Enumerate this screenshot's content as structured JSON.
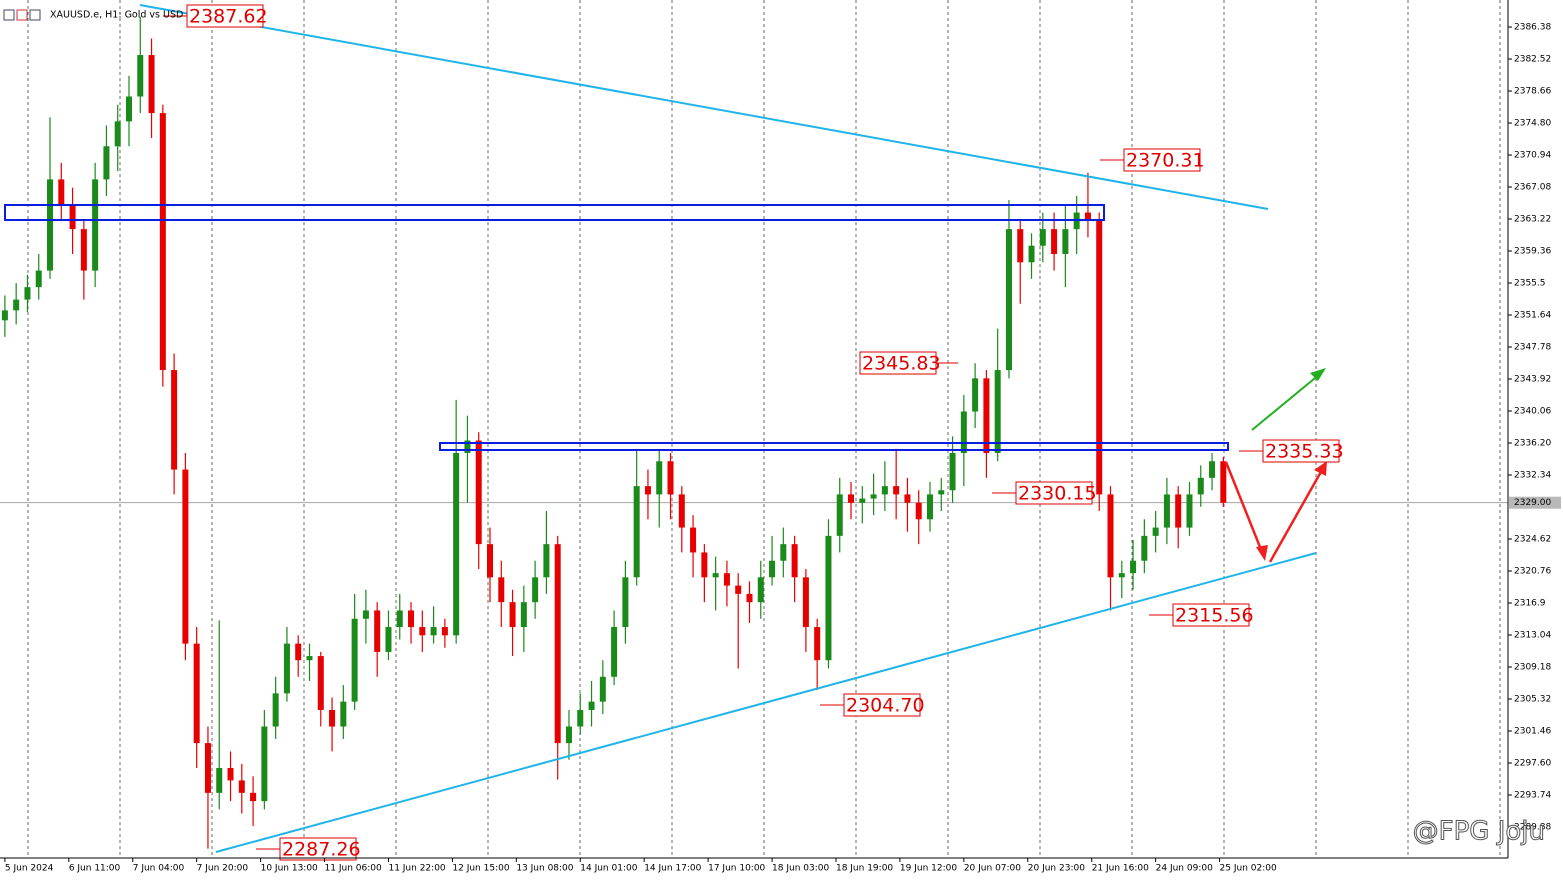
{
  "chart_data": {
    "type": "candlestick",
    "title": "XAUUSD.e, H1: Gold vs USD",
    "up_color": "#1a8a1a",
    "down_color": "#e60000",
    "watermark": "@FPG Joju",
    "xlim": [
      -1.3,
      399.7
    ],
    "ylim": [
      2286.14,
      2389.64
    ],
    "yticks": [
      2386.38,
      2382.52,
      2378.66,
      {
        "value": 2374.8,
        "label": "2374.80"
      },
      2370.94,
      2367.08,
      2363.22,
      2359.36,
      2355.5,
      2351.64,
      2347.78,
      2343.92,
      2340.06,
      {
        "value": 2336.2,
        "label": "2336.20"
      },
      2332.34,
      2324.62,
      2320.76,
      2316.9,
      2313.04,
      2309.18,
      2305.32,
      2301.46,
      {
        "value": 2297.6,
        "label": "2297.60"
      },
      2293.74,
      2289.88
    ],
    "xticks": [
      {
        "value": 0,
        "label": "5 Jun 2024"
      },
      {
        "value": 17,
        "label": "6 Jun 11:00"
      },
      {
        "value": 34,
        "label": "7 Jun 04:00"
      },
      {
        "value": 51,
        "label": "7 Jun 20:00"
      },
      {
        "value": 68,
        "label": "10 Jun 13:00"
      },
      {
        "value": 85,
        "label": "11 Jun 06:00"
      },
      {
        "value": 102,
        "label": "11 Jun 22:00"
      },
      {
        "value": 119,
        "label": "12 Jun 15:00"
      },
      {
        "value": 136,
        "label": "13 Jun 08:00"
      },
      {
        "value": 153,
        "label": "14 Jun 01:00"
      },
      {
        "value": 170,
        "label": "14 Jun 17:00"
      },
      {
        "value": 187,
        "label": "17 Jun 10:00"
      },
      {
        "value": 204,
        "label": "18 Jun 03:00"
      },
      {
        "value": 221,
        "label": "18 Jun 19:00"
      },
      {
        "value": 238,
        "label": "19 Jun 12:00"
      },
      {
        "value": 255,
        "label": "20 Jun 07:00"
      },
      {
        "value": 272,
        "label": "20 Jun 23:00"
      },
      {
        "value": 289,
        "label": "21 Jun 16:00"
      },
      {
        "value": 306,
        "label": "24 Jun 09:00"
      },
      {
        "value": 323,
        "label": "25 Jun 02:00"
      }
    ],
    "current_price": {
      "value": 2329.0,
      "label": "2329.00"
    },
    "annotations": [
      "2387.62",
      "2370.31",
      "2345.83",
      "2335.33",
      "2330.15",
      "2315.56",
      "2304.70",
      "2287.26"
    ],
    "x": [
      0,
      3,
      6,
      9,
      12,
      15,
      18,
      21,
      24,
      27,
      30,
      33,
      36,
      39,
      42,
      45,
      48,
      51,
      54,
      57,
      60,
      63,
      66,
      69,
      72,
      75,
      78,
      81,
      84,
      87,
      90,
      93,
      96,
      99,
      102,
      105,
      108,
      111,
      114,
      117,
      120,
      123,
      126,
      129,
      132,
      135,
      138,
      141,
      144,
      147,
      150,
      153,
      156,
      159,
      162,
      165,
      168,
      171,
      174,
      177,
      180,
      183,
      186,
      189,
      192,
      195,
      198,
      201,
      204,
      207,
      210,
      213,
      216,
      219,
      222,
      225,
      228,
      231,
      234,
      237,
      240,
      243,
      246,
      249,
      252,
      255,
      258,
      261,
      264,
      267,
      270,
      273,
      276,
      279,
      282,
      285,
      288,
      291,
      294,
      297,
      300,
      303,
      306,
      309,
      312,
      315,
      318,
      321,
      324
    ],
    "ohlc": [
      [
        2351,
        2354,
        2349,
        2352.2
      ],
      [
        2352.2,
        2355.5,
        2350.5,
        2353.5
      ],
      [
        2353.5,
        2356.5,
        2352,
        2355
      ],
      [
        2355,
        2359,
        2353.5,
        2357
      ],
      [
        2357,
        2375.5,
        2356,
        2368
      ],
      [
        2368,
        2370,
        2363,
        2365
      ],
      [
        2365,
        2367,
        2359,
        2362
      ],
      [
        2362,
        2363,
        2353.5,
        2357
      ],
      [
        2357,
        2370,
        2355,
        2368
      ],
      [
        2368,
        2374.5,
        2366,
        2372
      ],
      [
        2372,
        2377,
        2369,
        2375
      ],
      [
        2375,
        2380.5,
        2372,
        2378
      ],
      [
        2378,
        2387.62,
        2376,
        2383
      ],
      [
        2383,
        2385,
        2373,
        2376
      ],
      [
        2376,
        2377,
        2343,
        2345
      ],
      [
        2345,
        2347,
        2330,
        2333
      ],
      [
        2333,
        2335,
        2310,
        2312
      ],
      [
        2312,
        2314,
        2297,
        2300
      ],
      [
        2300,
        2302,
        2287.26,
        2294
      ],
      [
        2294,
        2314.8,
        2292,
        2297
      ],
      [
        2297,
        2299,
        2293,
        2295.5
      ],
      [
        2295.5,
        2297.5,
        2291.5,
        2294
      ],
      [
        2294,
        2296,
        2290,
        2293
      ],
      [
        2293,
        2304,
        2292,
        2302
      ],
      [
        2302,
        2308,
        2300.5,
        2306
      ],
      [
        2306,
        2314,
        2305,
        2312
      ],
      [
        2312,
        2313,
        2308,
        2310
      ],
      [
        2310,
        2312,
        2307.5,
        2310.5
      ],
      [
        2310.5,
        2311,
        2302,
        2304
      ],
      [
        2304,
        2305.5,
        2299,
        2302
      ],
      [
        2302,
        2307,
        2300.5,
        2305
      ],
      [
        2305,
        2318,
        2304,
        2315
      ],
      [
        2315,
        2318.5,
        2312,
        2316
      ],
      [
        2316,
        2317,
        2308,
        2311
      ],
      [
        2311,
        2316,
        2310,
        2314
      ],
      [
        2314,
        2318,
        2312.5,
        2316
      ],
      [
        2316,
        2317,
        2312,
        2314
      ],
      [
        2314,
        2316,
        2311,
        2313
      ],
      [
        2313,
        2316.5,
        2312,
        2314
      ],
      [
        2314,
        2315,
        2311.5,
        2313
      ],
      [
        2313,
        2341.4,
        2312,
        2335
      ],
      [
        2335,
        2339.5,
        2329,
        2336.5
      ],
      [
        2336.5,
        2337.5,
        2321,
        2324
      ],
      [
        2324,
        2326,
        2317,
        2320
      ],
      [
        2320,
        2322,
        2314,
        2317
      ],
      [
        2317,
        2318.5,
        2310.5,
        2314
      ],
      [
        2314,
        2319,
        2311,
        2317
      ],
      [
        2317,
        2322,
        2315,
        2320
      ],
      [
        2320,
        2328,
        2318,
        2324
      ],
      [
        2324,
        2325,
        2295.6,
        2300
      ],
      [
        2300,
        2304,
        2298,
        2302
      ],
      [
        2302,
        2306,
        2301,
        2304
      ],
      [
        2304,
        2307.5,
        2302,
        2305
      ],
      [
        2305,
        2310,
        2303.5,
        2308
      ],
      [
        2308,
        2316,
        2307,
        2314
      ],
      [
        2314,
        2322,
        2312,
        2320
      ],
      [
        2320,
        2335.5,
        2319,
        2331
      ],
      [
        2331,
        2333,
        2327,
        2330
      ],
      [
        2330,
        2335.5,
        2326,
        2334
      ],
      [
        2334,
        2335,
        2327,
        2330
      ],
      [
        2330,
        2331,
        2323,
        2326
      ],
      [
        2326,
        2327.5,
        2320,
        2323
      ],
      [
        2323,
        2324,
        2317,
        2320
      ],
      [
        2320,
        2322.5,
        2316,
        2320.5
      ],
      [
        2320.5,
        2322,
        2316.5,
        2319
      ],
      [
        2319,
        2320.5,
        2309,
        2318
      ],
      [
        2318,
        2319.5,
        2314.5,
        2317
      ],
      [
        2317,
        2322,
        2315,
        2320
      ],
      [
        2320,
        2325,
        2319,
        2322
      ],
      [
        2322,
        2326,
        2320,
        2324
      ],
      [
        2324,
        2325,
        2317,
        2320
      ],
      [
        2320,
        2321,
        2311,
        2314
      ],
      [
        2314,
        2315,
        2306.4,
        2310
      ],
      [
        2310,
        2327,
        2309,
        2325
      ],
      [
        2325,
        2332,
        2323,
        2330
      ],
      [
        2330,
        2331.5,
        2327,
        2329
      ],
      [
        2329,
        2331,
        2326.5,
        2329.5
      ],
      [
        2329.5,
        2332.5,
        2327.5,
        2330
      ],
      [
        2330,
        2334,
        2328,
        2331
      ],
      [
        2331,
        2335.5,
        2327,
        2330
      ],
      [
        2330,
        2332,
        2325.5,
        2329
      ],
      [
        2329,
        2330.5,
        2324,
        2327
      ],
      [
        2327,
        2331.5,
        2325.5,
        2330
      ],
      [
        2330,
        2332,
        2328,
        2330.5
      ],
      [
        2330.5,
        2337,
        2329,
        2335
      ],
      [
        2335,
        2342,
        2331,
        2340
      ],
      [
        2340,
        2345.83,
        2338,
        2344
      ],
      [
        2344,
        2345,
        2332,
        2335
      ],
      [
        2335,
        2350,
        2334,
        2345
      ],
      [
        2345,
        2365.5,
        2344,
        2362
      ],
      [
        2362,
        2363,
        2353,
        2358
      ],
      [
        2358,
        2361.5,
        2356,
        2360
      ],
      [
        2360,
        2364,
        2358,
        2362
      ],
      [
        2362,
        2364,
        2357,
        2359
      ],
      [
        2359,
        2365,
        2355,
        2362
      ],
      [
        2362,
        2366,
        2359,
        2364
      ],
      [
        2364,
        2368.8,
        2361,
        2363
      ],
      [
        2363,
        2364,
        2328,
        2330
      ],
      [
        2330,
        2331,
        2316,
        2320
      ],
      [
        2320,
        2322,
        2317.5,
        2320.5
      ],
      [
        2320.5,
        2324.5,
        2318.5,
        2322
      ],
      [
        2322,
        2327,
        2320.5,
        2325
      ],
      [
        2325,
        2328,
        2323,
        2326
      ],
      [
        2326,
        2332,
        2324,
        2330
      ],
      [
        2330,
        2331,
        2323.5,
        2326
      ],
      [
        2326,
        2331.5,
        2325,
        2330
      ],
      [
        2330,
        2333.5,
        2328.5,
        2332
      ],
      [
        2332,
        2335,
        2330.5,
        2334
      ],
      [
        2334,
        2334.5,
        2328.5,
        2329
      ]
    ]
  }
}
